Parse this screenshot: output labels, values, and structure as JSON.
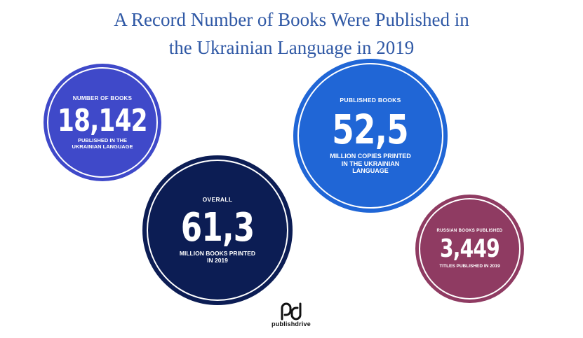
{
  "title": {
    "line1": "A Record Number of Books Were Published in",
    "line2": "the Ukrainian Language in 2019"
  },
  "circles": [
    {
      "label": "NUMBER OF BOOKS",
      "value": "18,142",
      "sub1": "PUBLISHED IN THE",
      "sub2": "UKRAINIAN LANGUAGE",
      "sub3": "",
      "color": "#3f49c9"
    },
    {
      "label": "PUBLISHED BOOKS",
      "value": "52,5",
      "sub1": "MILLION COPIES PRINTED",
      "sub2": "IN THE UKRAINIAN",
      "sub3": "LANGUAGE",
      "color": "#2066d6"
    },
    {
      "label": "OVERALL",
      "value": "61,3",
      "sub1": "MILLION BOOKS PRINTED",
      "sub2": "IN 2019",
      "sub3": "",
      "color": "#0c1d54"
    },
    {
      "label": "RUSSIAN BOOKS PUBLISHED",
      "value": "3,449",
      "sub1": "TITLES PUBLISHED IN 2019",
      "sub2": "",
      "sub3": "",
      "color": "#8f3b62"
    }
  ],
  "logo": {
    "icon": "publishdrive-logo-icon",
    "text": "publishdrive"
  }
}
